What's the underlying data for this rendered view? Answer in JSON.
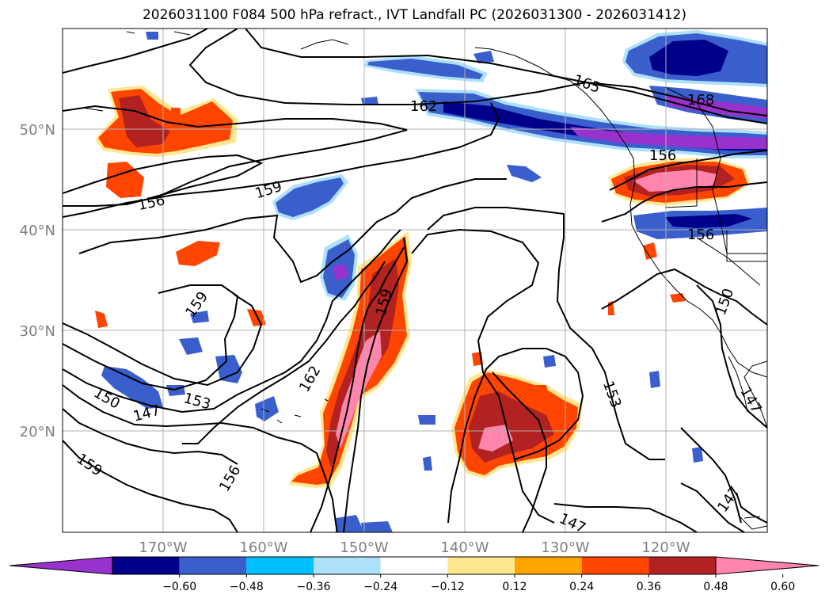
{
  "title": "2026031100 F084 500 hPa refract., IVT Landfall PC (2026031300 - 2026031412)",
  "lat_labels": [
    "50°N",
    "40°N",
    "30°N",
    "20°N"
  ],
  "lon_labels": [
    "170°W",
    "160°W",
    "150°W",
    "140°W",
    "130°W",
    "120°W"
  ],
  "contour_labels": [
    {
      "text": "165"
    },
    {
      "text": "162"
    },
    {
      "text": "168"
    },
    {
      "text": "156"
    },
    {
      "text": "159"
    },
    {
      "text": "156"
    },
    {
      "text": "156"
    },
    {
      "text": "159"
    },
    {
      "text": "159"
    },
    {
      "text": "162"
    },
    {
      "text": "153"
    },
    {
      "text": "150"
    },
    {
      "text": "147"
    },
    {
      "text": "153"
    },
    {
      "text": "159"
    },
    {
      "text": "156"
    },
    {
      "text": "147"
    },
    {
      "text": "147"
    },
    {
      "text": "147"
    },
    {
      "text": "150"
    }
  ],
  "colorbar": {
    "colors": [
      "#9932CC",
      "#00008B",
      "#3A5FCD",
      "#00BFFF",
      "#ADE1FA",
      "#FFFFFF",
      "#FFE78F",
      "#FFA500",
      "#FF4500",
      "#B22222",
      "#FF85AD"
    ],
    "ticks": [
      "−0.60",
      "−0.48",
      "−0.36",
      "−0.24",
      "−0.12",
      "0.12",
      "0.24",
      "0.36",
      "0.48",
      "0.60"
    ]
  }
}
